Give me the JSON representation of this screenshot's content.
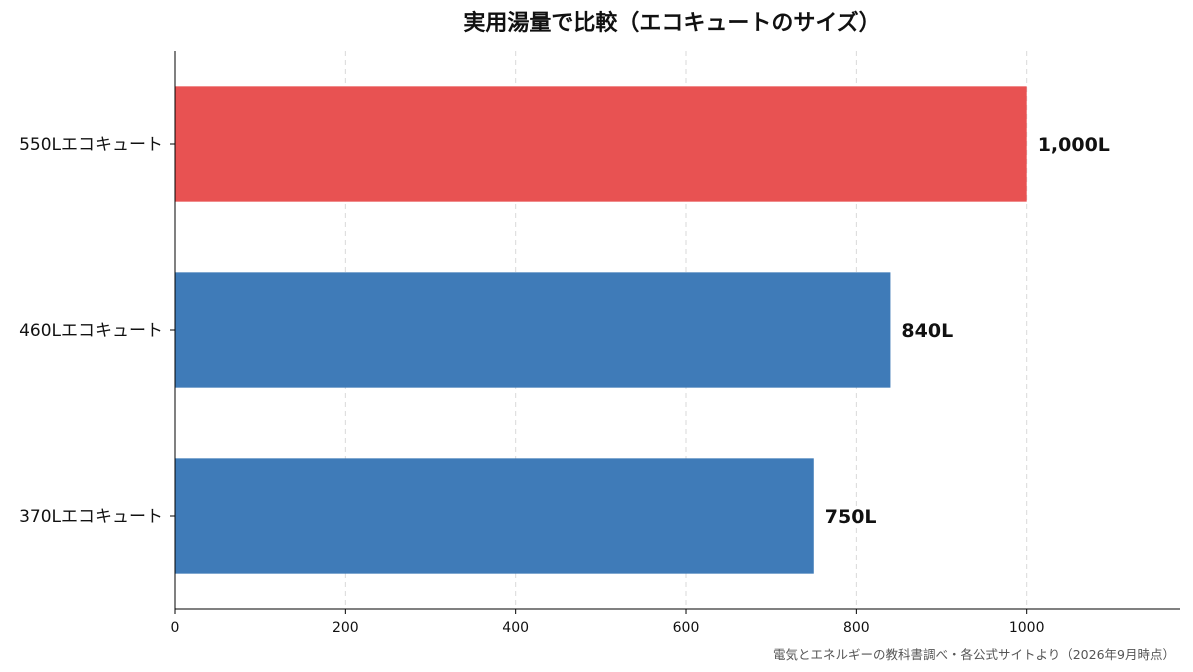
{
  "chart_data": {
    "type": "bar",
    "orientation": "horizontal",
    "title": "実用湯量で比較（エコキュートのサイズ）",
    "categories": [
      "550Lエコキュート",
      "460Lエコキュート",
      "370Lエコキュート"
    ],
    "values": [
      1000,
      840,
      750
    ],
    "data_labels": [
      "1,000L",
      "840L",
      "750L"
    ],
    "bar_colors": [
      "#e85252",
      "#3f7bb8",
      "#3f7bb8"
    ],
    "xlim": [
      0,
      1180
    ],
    "x_ticks": [
      0,
      200,
      400,
      600,
      800,
      1000
    ],
    "x_tick_labels": [
      "0",
      "200",
      "400",
      "600",
      "800",
      "1000"
    ],
    "grid": "vertical-dashed",
    "xlabel": "",
    "ylabel": ""
  },
  "source_note": "電気とエネルギーの教科書調べ・各公式サイトより（2026年9月時点）"
}
